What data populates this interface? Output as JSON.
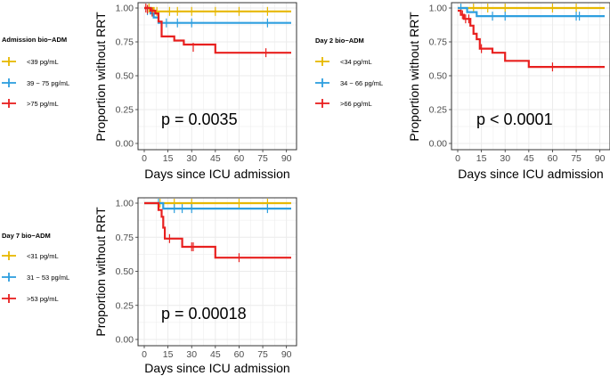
{
  "colors": {
    "low": "#E7B800",
    "mid": "#2E9FDF",
    "high": "#E8201F",
    "grid": "#ebebeb",
    "axis": "#333333"
  },
  "chart_data": [
    {
      "type": "line",
      "subtype": "kaplan-meier",
      "xlabel": "Days since ICU admission",
      "ylabel": "Proportion without RRT",
      "xticks": [
        0,
        15,
        30,
        45,
        60,
        75,
        90
      ],
      "yticks": [
        "0.00",
        "0.25",
        "0.50",
        "0.75",
        "1.00"
      ],
      "xlim": [
        0,
        93
      ],
      "ylim": [
        0,
        1
      ],
      "annotation": "p = 0.0035",
      "legend_title": "Admission bio−ADM",
      "series": [
        {
          "name": "<39 pg/mL",
          "color_key": "low",
          "steps": [
            [
              0,
              1.0
            ],
            [
              6,
              0.975
            ],
            [
              93,
              0.975
            ]
          ],
          "censors": [
            [
              3,
              1.0
            ],
            [
              8,
              0.975
            ],
            [
              16,
              0.975
            ],
            [
              21,
              0.975
            ],
            [
              30,
              0.975
            ],
            [
              45,
              0.975
            ],
            [
              60,
              0.975
            ],
            [
              78,
              0.975
            ]
          ]
        },
        {
          "name": "39 − 75 pg/mL",
          "color_key": "mid",
          "steps": [
            [
              0,
              1.0
            ],
            [
              4,
              0.96
            ],
            [
              6,
              0.93
            ],
            [
              9,
              0.89
            ],
            [
              93,
              0.89
            ]
          ],
          "censors": [
            [
              2,
              0.98
            ],
            [
              14,
              0.89
            ],
            [
              21,
              0.89
            ],
            [
              30,
              0.89
            ],
            [
              78,
              0.89
            ]
          ]
        },
        {
          "name": ">75 pg/mL",
          "color_key": "high",
          "steps": [
            [
              0,
              1.0
            ],
            [
              4,
              0.98
            ],
            [
              7,
              0.96
            ],
            [
              9,
              0.9
            ],
            [
              11,
              0.79
            ],
            [
              19,
              0.76
            ],
            [
              25,
              0.73
            ],
            [
              45,
              0.67
            ],
            [
              93,
              0.67
            ]
          ],
          "censors": [
            [
              1,
              1.0
            ],
            [
              2,
              0.99
            ],
            [
              5,
              0.97
            ],
            [
              31,
              0.71
            ],
            [
              77,
              0.67
            ]
          ]
        }
      ]
    },
    {
      "type": "line",
      "subtype": "kaplan-meier",
      "xlabel": "Days since ICU admission",
      "ylabel": "Proportion without RRT",
      "xticks": [
        0,
        15,
        30,
        45,
        60,
        75,
        90
      ],
      "yticks": [
        "0.00",
        "0.25",
        "0.50",
        "0.75",
        "1.00"
      ],
      "xlim": [
        0,
        93
      ],
      "ylim": [
        0,
        1
      ],
      "annotation": "p < 0.0001",
      "legend_title": "Day 2 bio−ADM",
      "series": [
        {
          "name": "<34 pg/mL",
          "color_key": "low",
          "steps": [
            [
              0,
              1.0
            ],
            [
              93,
              1.0
            ]
          ],
          "censors": [
            [
              10,
              1.0
            ],
            [
              19,
              1.0
            ],
            [
              30,
              1.0
            ],
            [
              60,
              1.0
            ],
            [
              75,
              1.0
            ]
          ]
        },
        {
          "name": "34 − 66 pg/mL",
          "color_key": "mid",
          "steps": [
            [
              0,
              1.0
            ],
            [
              6,
              0.97
            ],
            [
              12,
              0.94
            ],
            [
              93,
              0.94
            ]
          ],
          "censors": [
            [
              2,
              1.0
            ],
            [
              22,
              0.94
            ],
            [
              30,
              0.94
            ],
            [
              75,
              0.94
            ],
            [
              77,
              0.94
            ]
          ]
        },
        {
          "name": ">66 pg/mL",
          "color_key": "high",
          "steps": [
            [
              0,
              0.98
            ],
            [
              2,
              0.95
            ],
            [
              4,
              0.92
            ],
            [
              8,
              0.87
            ],
            [
              10,
              0.81
            ],
            [
              12,
              0.77
            ],
            [
              14,
              0.7
            ],
            [
              22,
              0.67
            ],
            [
              30,
              0.61
            ],
            [
              45,
              0.565
            ],
            [
              93,
              0.565
            ]
          ],
          "censors": [
            [
              3,
              0.95
            ],
            [
              5,
              0.92
            ],
            [
              7,
              0.92
            ],
            [
              15,
              0.7
            ],
            [
              60,
              0.565
            ]
          ]
        }
      ]
    },
    {
      "type": "line",
      "subtype": "kaplan-meier",
      "xlabel": "Days since ICU admission",
      "ylabel": "Proportion without RRT",
      "xticks": [
        0,
        15,
        30,
        45,
        60,
        75,
        90
      ],
      "yticks": [
        "0.00",
        "0.25",
        "0.50",
        "0.75",
        "1.00"
      ],
      "xlim": [
        0,
        93
      ],
      "ylim": [
        0,
        1
      ],
      "annotation": "p = 0.00018",
      "legend_title": "Day 7 bio−ADM",
      "series": [
        {
          "name": "<31 pg/mL",
          "color_key": "low",
          "steps": [
            [
              0,
              1.0
            ],
            [
              93,
              1.0
            ]
          ],
          "censors": [
            [
              10,
              1.0
            ],
            [
              19,
              1.0
            ],
            [
              30,
              1.0
            ],
            [
              60,
              1.0
            ],
            [
              78,
              1.0
            ]
          ]
        },
        {
          "name": "31 − 53 pg/mL",
          "color_key": "mid",
          "steps": [
            [
              0,
              1.0
            ],
            [
              12,
              0.96
            ],
            [
              93,
              0.96
            ]
          ],
          "censors": [
            [
              9,
              1.0
            ],
            [
              19,
              0.96
            ],
            [
              24,
              0.96
            ],
            [
              30,
              0.96
            ],
            [
              78,
              0.96
            ]
          ]
        },
        {
          "name": ">53 pg/mL",
          "color_key": "high",
          "steps": [
            [
              0,
              1.0
            ],
            [
              9,
              0.95
            ],
            [
              11,
              0.9
            ],
            [
              12,
              0.82
            ],
            [
              13,
              0.74
            ],
            [
              24,
              0.68
            ],
            [
              45,
              0.6
            ],
            [
              93,
              0.6
            ]
          ],
          "censors": [
            [
              16,
              0.74
            ],
            [
              30,
              0.68
            ],
            [
              31,
              0.68
            ],
            [
              60,
              0.6
            ]
          ]
        }
      ]
    }
  ]
}
